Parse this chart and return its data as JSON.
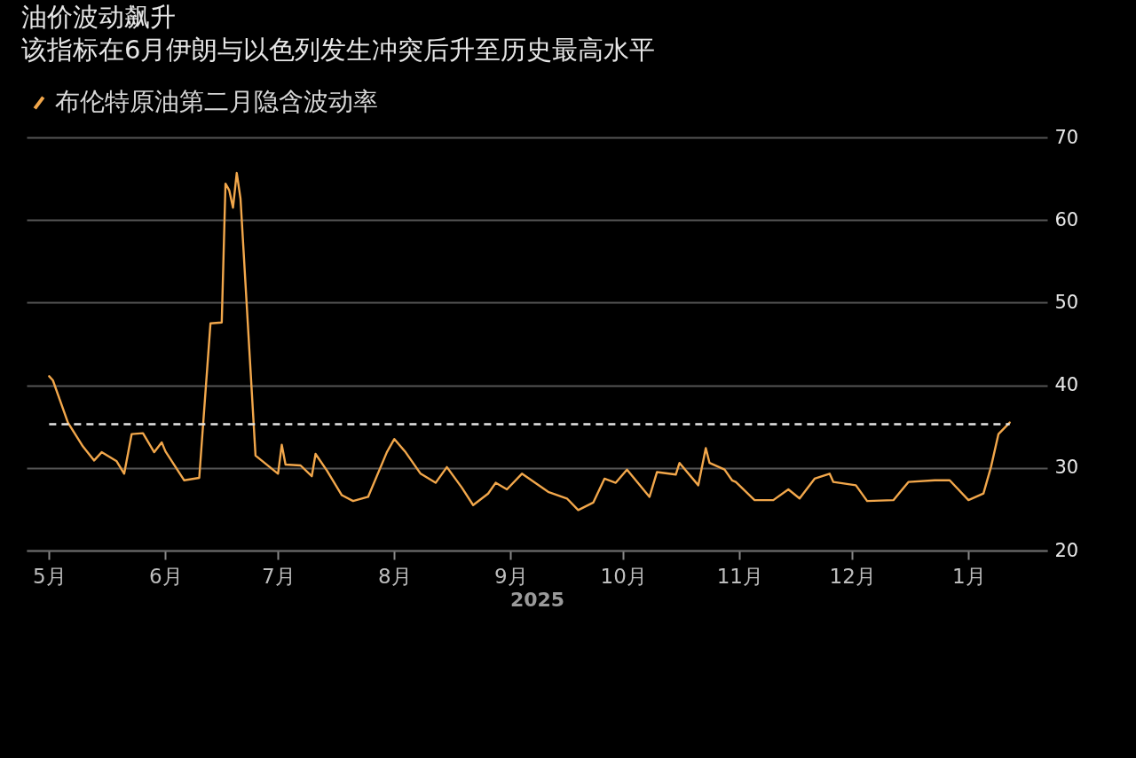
{
  "chart_data": {
    "type": "line",
    "title": "油价波动飙升",
    "subtitle": "该指标在6月伊朗与以色列发生冲突后升至历史最高水平",
    "xlabel": "2025",
    "x": [
      "2025-05-01",
      "2025-05-02",
      "2025-05-06",
      "2025-05-10",
      "2025-05-13",
      "2025-05-15",
      "2025-05-19",
      "2025-05-21",
      "2025-05-23",
      "2025-05-26",
      "2025-05-29",
      "2025-05-31",
      "2025-06-01",
      "2025-06-06",
      "2025-06-10",
      "2025-06-13",
      "2025-06-16",
      "2025-06-17",
      "2025-06-18",
      "2025-06-19",
      "2025-06-20",
      "2025-06-21",
      "2025-06-25",
      "2025-07-01",
      "2025-07-02",
      "2025-07-03",
      "2025-07-07",
      "2025-07-10",
      "2025-07-11",
      "2025-07-14",
      "2025-07-18",
      "2025-07-21",
      "2025-07-25",
      "2025-07-30",
      "2025-08-01",
      "2025-08-04",
      "2025-08-08",
      "2025-08-12",
      "2025-08-15",
      "2025-08-19",
      "2025-08-22",
      "2025-08-26",
      "2025-08-28",
      "2025-08-31",
      "2025-09-04",
      "2025-09-11",
      "2025-09-16",
      "2025-09-19",
      "2025-09-23",
      "2025-09-26",
      "2025-09-29",
      "2025-10-02",
      "2025-10-08",
      "2025-10-10",
      "2025-10-15",
      "2025-10-16",
      "2025-10-21",
      "2025-10-23",
      "2025-10-24",
      "2025-10-28",
      "2025-10-30",
      "2025-10-31",
      "2025-11-05",
      "2025-11-10",
      "2025-11-14",
      "2025-11-17",
      "2025-11-21",
      "2025-11-25",
      "2025-11-26",
      "2025-12-02",
      "2025-12-05",
      "2025-12-12",
      "2025-12-16",
      "2025-12-23",
      "2025-12-27",
      "2026-01-01",
      "2026-01-05",
      "2026-01-07",
      "2026-01-09",
      "2026-01-12"
    ],
    "series": [
      {
        "name": "布伦特原油第二月隐含波动率",
        "color": "#f2a74b",
        "values": [
          41.1,
          40.6,
          35.5,
          32.6,
          30.9,
          31.9,
          30.8,
          29.3,
          34.1,
          34.2,
          31.9,
          33.1,
          32.0,
          28.5,
          28.8,
          47.5,
          47.6,
          64.4,
          63.6,
          61.5,
          65.7,
          62.6,
          31.5,
          29.3,
          32.8,
          30.4,
          30.3,
          29.0,
          31.7,
          29.7,
          26.7,
          26.0,
          26.5,
          31.9,
          33.5,
          31.9,
          29.3,
          28.2,
          30.1,
          27.6,
          25.5,
          26.9,
          28.2,
          27.4,
          29.3,
          27.1,
          26.3,
          24.9,
          25.8,
          28.7,
          28.2,
          29.8,
          26.5,
          29.5,
          29.2,
          30.6,
          27.9,
          32.4,
          30.6,
          29.8,
          28.5,
          28.3,
          26.1,
          26.1,
          27.4,
          26.3,
          28.7,
          29.3,
          28.3,
          27.9,
          26.0,
          26.1,
          28.3,
          28.5,
          28.5,
          26.1,
          26.9,
          30.1,
          34.1,
          35.5
        ]
      }
    ],
    "xlim": [
      "2025-04-25",
      "2026-01-22"
    ],
    "xticks": [
      {
        "value": "2025-05-01",
        "label": "5月"
      },
      {
        "value": "2025-06-01",
        "label": "6月"
      },
      {
        "value": "2025-07-01",
        "label": "7月"
      },
      {
        "value": "2025-08-01",
        "label": "8月"
      },
      {
        "value": "2025-09-01",
        "label": "9月"
      },
      {
        "value": "2025-10-01",
        "label": "10月"
      },
      {
        "value": "2025-11-01",
        "label": "11月"
      },
      {
        "value": "2025-12-01",
        "label": "12月"
      },
      {
        "value": "2026-01-01",
        "label": "1月"
      }
    ],
    "ylim": [
      20,
      70
    ],
    "yticks": [
      20,
      30,
      40,
      50,
      60,
      70
    ],
    "ref_lines": [
      {
        "axis": "y",
        "value": 35.3,
        "color": "#e6e6e6",
        "line_style": "dashed"
      }
    ],
    "grid": "y",
    "legend": "top left",
    "marker": "none",
    "line_style": "solid"
  }
}
